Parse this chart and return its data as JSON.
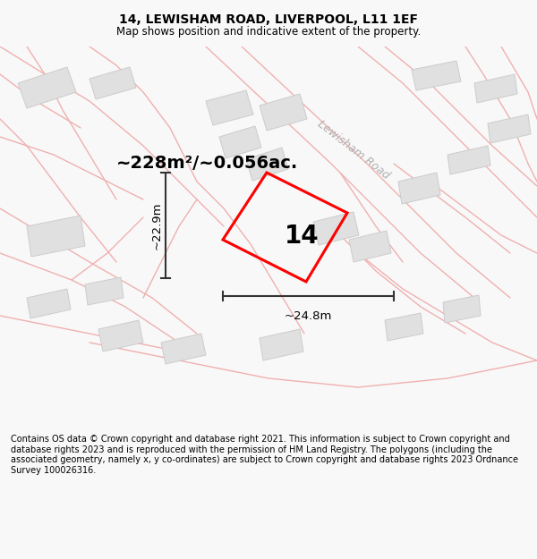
{
  "title": "14, LEWISHAM ROAD, LIVERPOOL, L11 1EF",
  "subtitle": "Map shows position and indicative extent of the property.",
  "footer": "Contains OS data © Crown copyright and database right 2021. This information is subject to Crown copyright and database rights 2023 and is reproduced with the permission of HM Land Registry. The polygons (including the associated geometry, namely x, y co-ordinates) are subject to Crown copyright and database rights 2023 Ordnance Survey 100026316.",
  "area_label": "~228m²/~0.056ac.",
  "width_label": "~24.8m",
  "height_label": "~22.9m",
  "property_number": "14",
  "bg_color": "#f8f8f8",
  "map_bg": "#ffffff",
  "building_fill": "#e0e0e0",
  "building_edge": "#cccccc",
  "road_line_color": "#f0b0b0",
  "property_color": "#ff0000",
  "measure_color": "#333333",
  "road_label_color": "#b0b0b0",
  "road_label": "Lewisham Road",
  "title_fontsize": 10,
  "subtitle_fontsize": 8.5,
  "footer_fontsize": 7.0,
  "area_fontsize": 14,
  "number_fontsize": 20,
  "measure_fontsize": 9.5
}
